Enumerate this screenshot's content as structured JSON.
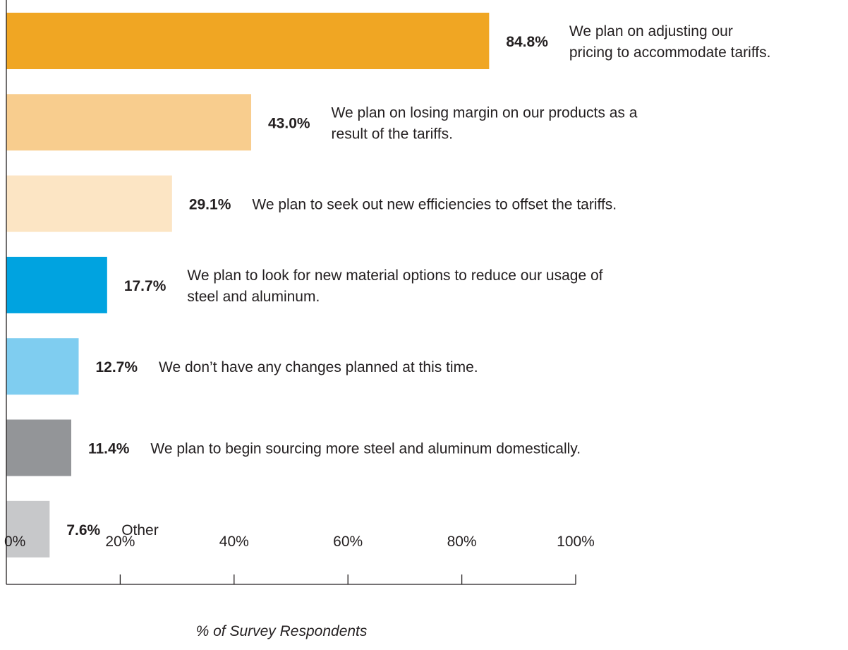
{
  "chart_data": {
    "type": "bar",
    "orientation": "horizontal",
    "xlabel": "% of Survey Respondents",
    "xlim": [
      0,
      100
    ],
    "x_ticks": [
      "0%",
      "20%",
      "40%",
      "60%",
      "80%",
      "100%"
    ],
    "grid": false,
    "bars": [
      {
        "value": 84.8,
        "value_label": "84.8%",
        "label": "We plan on adjusting our pricing to accommodate tariffs.",
        "label_lines": [
          "We plan on adjusting our",
          "pricing to accommodate tariffs."
        ],
        "color": "#f0a623"
      },
      {
        "value": 43.0,
        "value_label": "43.0%",
        "label": "We plan on losing margin on our products as a result of the tariffs.",
        "label_lines": [
          "We plan on losing margin on our products as a",
          "result of the tariffs."
        ],
        "color": "#f8cd8e"
      },
      {
        "value": 29.1,
        "value_label": "29.1%",
        "label": "We plan to seek out new efficiencies to offset the tariffs.",
        "label_lines": [
          "We plan to seek out new efficiencies to offset the tariffs."
        ],
        "color": "#fce5c4"
      },
      {
        "value": 17.7,
        "value_label": "17.7%",
        "label": "We plan to look for new material options to reduce our usage of steel and aluminum.",
        "label_lines": [
          "We plan to look for new material options to reduce our usage of",
          "steel and aluminum."
        ],
        "color": "#00a3e0"
      },
      {
        "value": 12.7,
        "value_label": "12.7%",
        "label": "We don’t have any changes planned at this time.",
        "label_lines": [
          "We don’t have any changes planned at this time."
        ],
        "color": "#7fcdf0"
      },
      {
        "value": 11.4,
        "value_label": "11.4%",
        "label": "We plan to begin sourcing more steel and aluminum domestically.",
        "label_lines": [
          "We plan to begin sourcing more steel and aluminum domestically."
        ],
        "color": "#939598"
      },
      {
        "value": 7.6,
        "value_label": "7.6%",
        "label": "Other",
        "label_lines": [
          "Other"
        ],
        "color": "#c7c8ca"
      }
    ]
  }
}
